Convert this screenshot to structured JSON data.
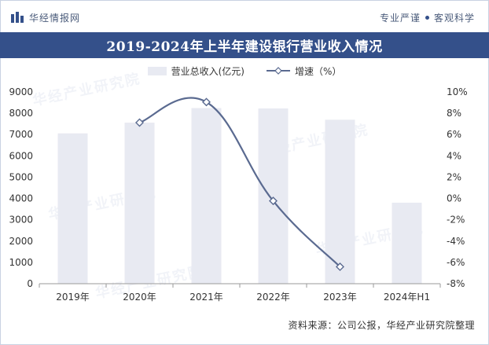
{
  "header": {
    "brand": "华经情报网",
    "tagline_left": "专业严谨",
    "tagline_right": "客观科学"
  },
  "chart_data": {
    "type": "bar",
    "title": "2019-2024年上半年建设银行营业收入情况",
    "categories": [
      "2019年",
      "2020年",
      "2021年",
      "2022年",
      "2023年",
      "2024年H1"
    ],
    "series": [
      {
        "name": "营业总收入(亿元)",
        "type": "bar",
        "axis": "left",
        "values": [
          7056,
          7559,
          8243,
          8224,
          7697,
          3803
        ],
        "color": "#e8eaf2"
      },
      {
        "name": "增速（%）",
        "type": "line",
        "axis": "right",
        "values": [
          null,
          7.12,
          9.05,
          -0.23,
          -6.41,
          null
        ],
        "color": "#5a6a90"
      }
    ],
    "ylim_left": [
      0,
      9000
    ],
    "yticks_left": [
      0,
      1000,
      2000,
      3000,
      4000,
      5000,
      6000,
      7000,
      8000,
      9000
    ],
    "ylim_right": [
      -8,
      10
    ],
    "yticks_right": [
      "-8%",
      "-6%",
      "-4%",
      "-2%",
      "0%",
      "2%",
      "4%",
      "6%",
      "8%",
      "10%"
    ],
    "grid": false,
    "legend_position": "top"
  },
  "footer": {
    "source": "资料来源：公司公报，华经产业研究院整理"
  },
  "watermarks": [
    "华经产业研究院",
    "华经产业研究院",
    "华经产业研究院",
    "华经产业研究院",
    "华经产业研究院"
  ]
}
